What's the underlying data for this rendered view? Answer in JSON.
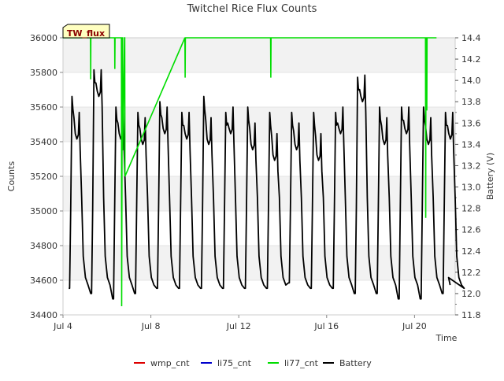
{
  "chart_data": {
    "type": "line",
    "title": "Twitchel Rice Flux Counts",
    "xlabel": "Time",
    "ylabel": "Counts",
    "y2label": "Battery (V)",
    "annotation": "TW_flux",
    "xlim": [
      4.0,
      21.85
    ],
    "ylim": [
      34400,
      36000
    ],
    "y2lim": [
      11.8,
      14.4
    ],
    "x_ticks": [
      {
        "value": 4,
        "label": "Jul 4"
      },
      {
        "value": 8,
        "label": "Jul 8"
      },
      {
        "value": 12,
        "label": "Jul 12"
      },
      {
        "value": 16,
        "label": "Jul 16"
      },
      {
        "value": 20,
        "label": "Jul 20"
      }
    ],
    "y_ticks": [
      34400,
      34600,
      34800,
      35000,
      35200,
      35400,
      35600,
      35800,
      36000
    ],
    "y2_ticks": [
      "11.8",
      "12.0",
      "12.2",
      "12.4",
      "12.6",
      "12.8",
      "13.0",
      "13.2",
      "13.4",
      "13.6",
      "13.8",
      "14.0",
      "14.2",
      "14.4"
    ],
    "legend_position": "bottom",
    "series": [
      {
        "name": "wmp_cnt",
        "color": "#dd0000",
        "axis": "left",
        "x": [],
        "y": []
      },
      {
        "name": "li75_cnt",
        "color": "#0000cc",
        "axis": "left",
        "x": [],
        "y": []
      },
      {
        "name": "li77_cnt",
        "color": "#00dd00",
        "axis": "left",
        "x": [
          4.0,
          5.25,
          5.26,
          5.27,
          6.35,
          6.36,
          6.37,
          6.66,
          6.67,
          6.7,
          6.71,
          6.72,
          6.8,
          6.81,
          6.82,
          9.55,
          9.56,
          9.57,
          13.45,
          13.46,
          13.47,
          20.5,
          20.51,
          20.52,
          20.55,
          20.56,
          20.57,
          21.0
        ],
        "y": [
          36000,
          36000,
          35760,
          36000,
          36000,
          35820,
          36000,
          36000,
          34450,
          36000,
          36000,
          35350,
          36000,
          36000,
          35200,
          36000,
          35770,
          36000,
          36000,
          35770,
          36000,
          36000,
          34960,
          36000,
          36000,
          35580,
          36000,
          36000
        ]
      },
      {
        "name": "Battery",
        "color": "#000000",
        "axis": "right",
        "day_ends": [
          12.0,
          11.95,
          12.0,
          12.05,
          12.05,
          12.05,
          12.05,
          12.05,
          12.05,
          12.1,
          12.05,
          12.05,
          12.0,
          12.0,
          11.95,
          11.95,
          12.0,
          12.05
        ],
        "day_peaks": [
          13.85,
          14.1,
          13.75,
          13.7,
          13.8,
          13.7,
          13.85,
          13.7,
          13.75,
          13.7,
          13.7,
          13.7,
          13.7,
          14.03,
          13.75,
          13.75,
          13.75,
          13.7
        ],
        "day_plateaus": [
          13.45,
          13.85,
          13.45,
          13.4,
          13.5,
          13.45,
          13.4,
          13.5,
          13.35,
          13.25,
          13.35,
          13.25,
          13.5,
          13.8,
          13.4,
          13.5,
          13.4,
          13.45
        ]
      }
    ]
  }
}
